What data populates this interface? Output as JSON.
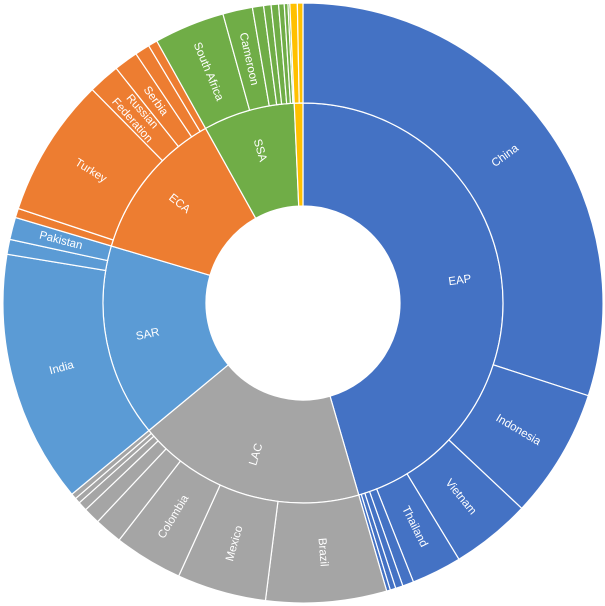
{
  "chart_data": {
    "type": "sunburst",
    "title": "",
    "legend": "none",
    "colors": {
      "EAP": "#4472C4",
      "LAC": "#A5A5A5",
      "SAR": "#5B9BD5",
      "ECA": "#ED7D31",
      "SSA": "#70AD47",
      "OTHER": "#FFC000"
    },
    "regions": [
      {
        "key": "EAP",
        "label": "EAP",
        "value": 45.5,
        "children": [
          {
            "label": "China",
            "value": 30.0
          },
          {
            "label": "Indonesia",
            "value": 7.0
          },
          {
            "label": "Vietnam",
            "value": 4.3
          },
          {
            "label": "Thailand",
            "value": 2.7
          },
          {
            "label": "",
            "value": 0.6
          },
          {
            "label": "",
            "value": 0.4
          },
          {
            "label": "",
            "value": 0.3
          },
          {
            "label": "",
            "value": 0.2
          }
        ]
      },
      {
        "key": "LAC",
        "label": "LAC",
        "value": 18.5,
        "children": [
          {
            "label": "Brazil",
            "value": 6.5
          },
          {
            "label": "Mexico",
            "value": 4.8
          },
          {
            "label": "Colombia",
            "value": 3.7
          },
          {
            "label": "",
            "value": 1.5
          },
          {
            "label": "",
            "value": 0.9
          },
          {
            "label": "",
            "value": 0.5
          },
          {
            "label": "",
            "value": 0.3
          },
          {
            "label": "",
            "value": 0.3
          }
        ]
      },
      {
        "key": "SAR",
        "label": "SAR",
        "value": 15.6,
        "children": [
          {
            "label": "India",
            "value": 13.6
          },
          {
            "label": "",
            "value": 0.8
          },
          {
            "label": "Pakistan",
            "value": 1.2
          }
        ]
      },
      {
        "key": "ECA",
        "label": "ECA",
        "value": 12.3,
        "children": [
          {
            "label": "",
            "value": 0.5
          },
          {
            "label": "Turkey",
            "value": 7.5
          },
          {
            "label": "Russian Federation",
            "value": 1.7
          },
          {
            "label": "Serbia",
            "value": 1.3
          },
          {
            "label": "",
            "value": 0.8
          },
          {
            "label": "",
            "value": 0.5
          }
        ]
      },
      {
        "key": "SSA",
        "label": "SSA",
        "value": 7.4,
        "children": [
          {
            "label": "South Africa",
            "value": 3.8
          },
          {
            "label": "Cameroon",
            "value": 1.6
          },
          {
            "label": "",
            "value": 0.6
          },
          {
            "label": "",
            "value": 0.4
          },
          {
            "label": "",
            "value": 0.4
          },
          {
            "label": "",
            "value": 0.3
          },
          {
            "label": "",
            "value": 0.2
          },
          {
            "label": "",
            "value": 0.1
          }
        ]
      },
      {
        "key": "OTHER",
        "label": "",
        "value": 0.7,
        "children": [
          {
            "label": "",
            "value": 0.4
          },
          {
            "label": "",
            "value": 0.3
          }
        ]
      }
    ]
  }
}
